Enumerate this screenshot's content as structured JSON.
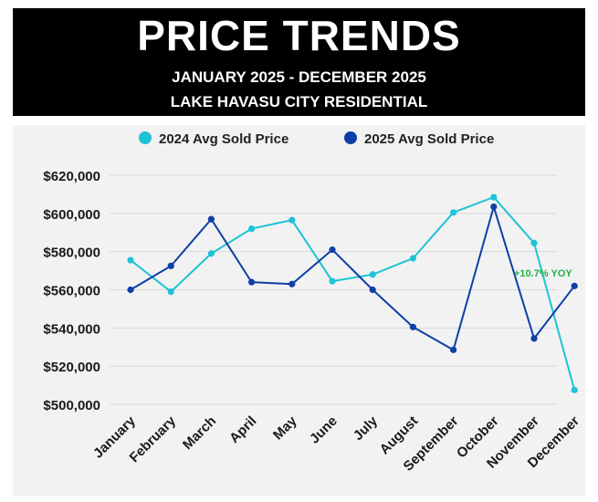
{
  "header": {
    "title": "PRICE TRENDS",
    "subtitle_line1": "JANUARY 2025 - DECEMBER 2025",
    "subtitle_line2": "LAKE HAVASU CITY RESIDENTIAL"
  },
  "colors": {
    "series_2024": "#1ec3d6",
    "series_2025": "#0d3fa6",
    "annotation": "#22b04b",
    "grid": "#d9d9d9"
  },
  "chart_data": {
    "type": "line",
    "title": "PRICE TRENDS",
    "categories": [
      "January",
      "February",
      "March",
      "April",
      "May",
      "June",
      "July",
      "August",
      "September",
      "October",
      "November",
      "December"
    ],
    "series": [
      {
        "name": "2024 Avg Sold Price",
        "values": [
          575500,
          559000,
          579000,
          592000,
          596500,
          564500,
          568000,
          576500,
          600500,
          608500,
          584500,
          507500
        ]
      },
      {
        "name": "2025 Avg Sold Price",
        "values": [
          560000,
          572500,
          597000,
          564000,
          563000,
          581000,
          560000,
          540500,
          528500,
          603500,
          534500,
          562000
        ]
      }
    ],
    "ylim": [
      500000,
      620000
    ],
    "yticks": [
      500000,
      520000,
      540000,
      560000,
      580000,
      600000,
      620000
    ],
    "ytick_labels": [
      "$500,000",
      "$520,000",
      "$540,000",
      "$560,000",
      "$580,000",
      "$600,000",
      "$620,000"
    ],
    "xlabel": "",
    "ylabel": "",
    "grid": true,
    "legend_position": "top-center",
    "annotation": {
      "text": "+10.7% YOY",
      "anchor_category": "December"
    }
  }
}
